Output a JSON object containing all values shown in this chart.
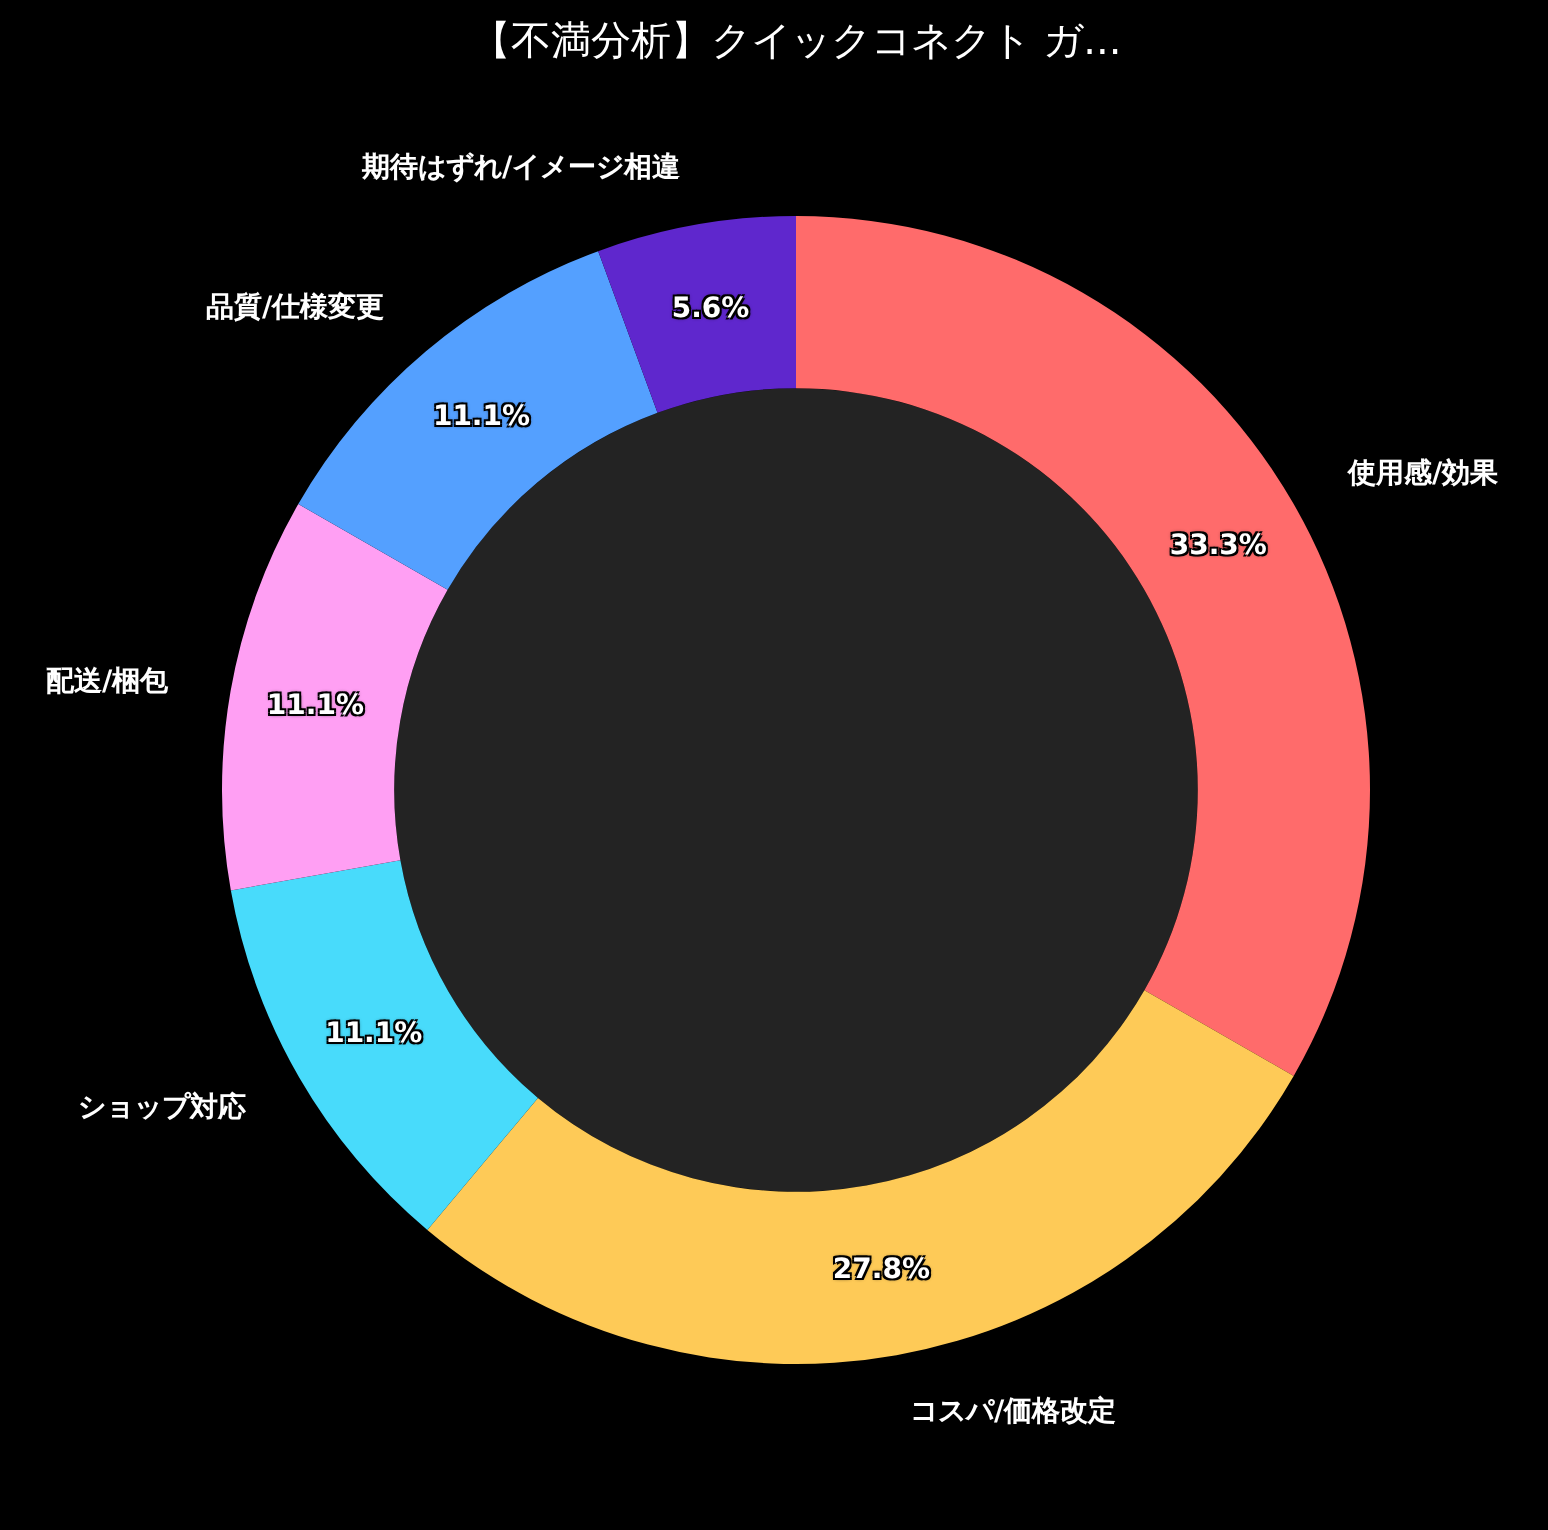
{
  "chart_data": {
    "type": "donut",
    "title": "【不満分析】クイックコネクト ガ...",
    "categories": [
      "使用感/効果",
      "コスパ/価格改定",
      "ショップ対応",
      "配送/梱包",
      "品質/仕様変更",
      "期待はずれ/イメージ相違"
    ],
    "values": [
      33.3,
      27.8,
      11.1,
      11.1,
      11.1,
      5.6
    ],
    "colors": [
      "#ff6b6b",
      "#feca57",
      "#48dbfb",
      "#ff9ff3",
      "#54a0ff",
      "#5f27cd"
    ],
    "value_labels": [
      "33.3%",
      "27.8%",
      "11.1%",
      "11.1%",
      "11.1%",
      "5.6%"
    ],
    "legend": false
  }
}
